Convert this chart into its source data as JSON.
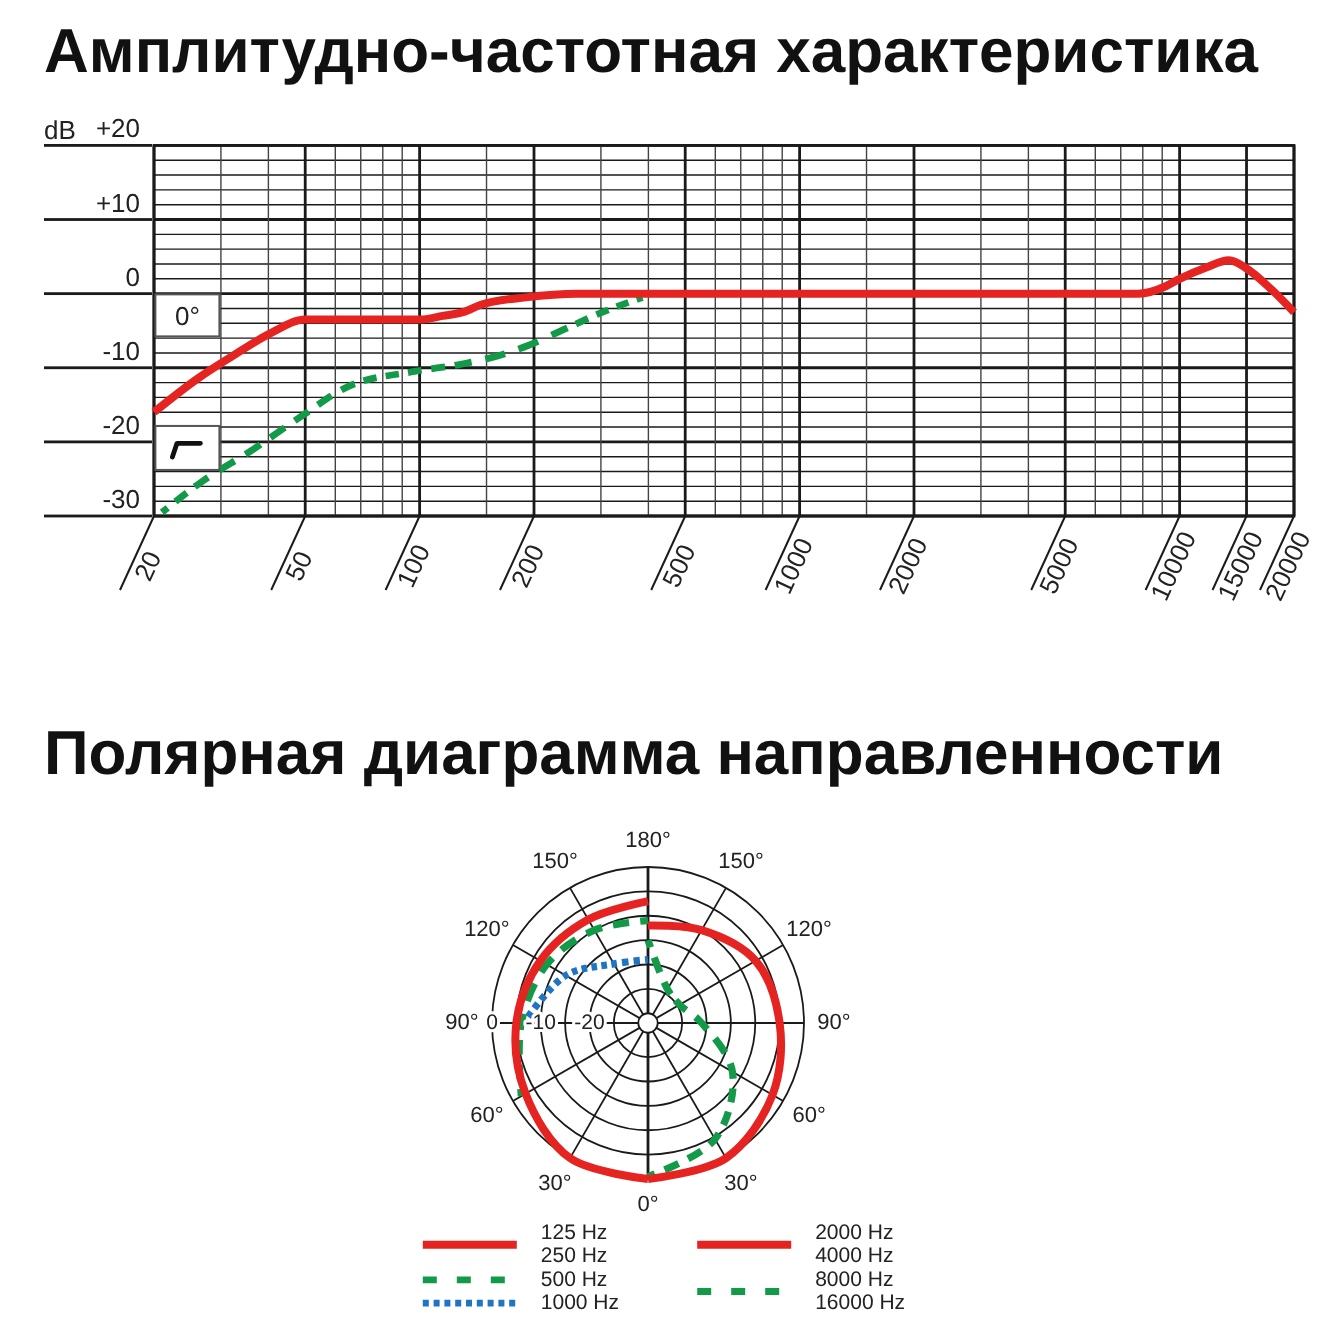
{
  "chart_data": [
    {
      "type": "line",
      "title": "Амплитудно-частотная характеристика",
      "ylabel": "dB",
      "log": "x",
      "xlim": [
        20,
        20000
      ],
      "xticks": [
        20,
        {
          "value": 30,
          "label": null
        },
        {
          "value": 40,
          "label": null
        },
        50,
        {
          "value": 60,
          "label": null
        },
        {
          "value": 70,
          "label": null
        },
        {
          "value": 80,
          "label": null
        },
        {
          "value": 90,
          "label": null
        },
        100,
        {
          "value": 150,
          "label": null
        },
        200,
        {
          "value": 300,
          "label": null
        },
        {
          "value": 400,
          "label": null
        },
        500,
        {
          "value": 600,
          "label": null
        },
        {
          "value": 700,
          "label": null
        },
        {
          "value": 800,
          "label": null
        },
        {
          "value": 900,
          "label": null
        },
        1000,
        {
          "value": 1500,
          "label": null
        },
        2000,
        {
          "value": 3000,
          "label": null
        },
        {
          "value": 4000,
          "label": null
        },
        5000,
        {
          "value": 6000,
          "label": null
        },
        {
          "value": 7000,
          "label": null
        },
        {
          "value": 8000,
          "label": null
        },
        {
          "value": 9000,
          "label": null
        },
        10000,
        15000,
        20000
      ],
      "ylim": [
        -30,
        20
      ],
      "yticks": [
        {
          "value": 20,
          "label": "+20"
        },
        {
          "value": 18,
          "label": null
        },
        {
          "value": 16,
          "label": null
        },
        {
          "value": 14,
          "label": null
        },
        {
          "value": 12,
          "label": null
        },
        {
          "value": 10,
          "label": "+10"
        },
        {
          "value": 8,
          "label": null
        },
        {
          "value": 6,
          "label": null
        },
        {
          "value": 4,
          "label": null
        },
        {
          "value": 2,
          "label": null
        },
        0,
        {
          "value": -2,
          "label": null
        },
        {
          "value": -4,
          "label": null
        },
        {
          "value": -6,
          "label": null
        },
        {
          "value": -8,
          "label": null
        },
        -10,
        {
          "value": -12,
          "label": null
        },
        {
          "value": -14,
          "label": null
        },
        {
          "value": -16,
          "label": null
        },
        {
          "value": -18,
          "label": null
        },
        -20,
        {
          "value": -22,
          "label": null
        },
        {
          "value": -24,
          "label": null
        },
        {
          "value": -26,
          "label": null
        },
        {
          "value": -28,
          "label": null
        },
        -30
      ],
      "grid": true,
      "annotations": [
        "0°"
      ],
      "series": [
        {
          "color": "#e52421",
          "line_style": "solid",
          "x": [
            20,
            26,
            32,
            40,
            50,
            75,
            100,
            115,
            130,
            145,
            190,
            260,
            7800,
            9200,
            10000,
            11700,
            13500,
            14900,
            17500,
            20000
          ],
          "values": [
            -16,
            -11.5,
            -8.5,
            -5.5,
            -3.5,
            -3.5,
            -3.5,
            -3,
            -2.5,
            -1.5,
            -0.5,
            0,
            0,
            1,
            2,
            3.5,
            4.5,
            3.5,
            0.5,
            -2.5
          ]
        },
        {
          "color": "#129a48",
          "line_style": "dashed",
          "x": [
            21,
            26.5,
            36.5,
            49,
            65,
            97,
            129,
            158,
            193,
            236,
            303,
            386
          ],
          "values": [
            -29.5,
            -25.5,
            -21,
            -16.5,
            -12.5,
            -10.5,
            -9.5,
            -8.5,
            -7,
            -5,
            -2.5,
            -0.5
          ]
        }
      ]
    },
    {
      "type": "radar",
      "title": "Полярная диаграмма направленности",
      "categories": [
        "180°",
        "150°",
        "120°",
        "90°",
        "60°",
        "30°",
        "0°",
        "30°",
        "60°",
        "90°",
        "120°",
        "150°"
      ],
      "ylim": [
        -32,
        0
      ],
      "yticks": [
        -20,
        -10,
        0
      ],
      "grid": true,
      "legend": "bottom",
      "series": [
        {
          "name": "125 Hz\n250 Hz",
          "color": "#e52421",
          "line_style": "solid",
          "values": [
            -7,
            null,
            null,
            null,
            null,
            null,
            0,
            0,
            -3,
            -5,
            -6.5,
            -7.5
          ]
        },
        {
          "name": "500 Hz",
          "color": "#129a48",
          "line_style": "dashed",
          "values": [
            -11,
            null,
            null,
            null,
            null,
            null,
            null,
            null,
            -2,
            -6,
            -8,
            -10
          ]
        },
        {
          "name": "1000 Hz",
          "color": "#1f74c4",
          "line_style": "dotted",
          "values": [
            -19,
            null,
            null,
            null,
            null,
            null,
            null,
            null,
            null,
            -6.5,
            -12.5,
            -18
          ]
        },
        {
          "name": "2000 Hz\n4000 Hz",
          "color": "#e52421",
          "line_style": "solid",
          "values": [
            -12,
            -10,
            -6.5,
            -5,
            -2.5,
            0,
            0,
            null,
            null,
            null,
            null,
            null
          ]
        },
        {
          "name": "8000 Hz\n16000 Hz",
          "color": "#129a48",
          "line_style": "dashed",
          "values": [
            -15,
            -24,
            -24.5,
            -21,
            -12,
            -4.5,
            -0.5,
            null,
            null,
            null,
            null,
            null
          ]
        }
      ]
    }
  ]
}
